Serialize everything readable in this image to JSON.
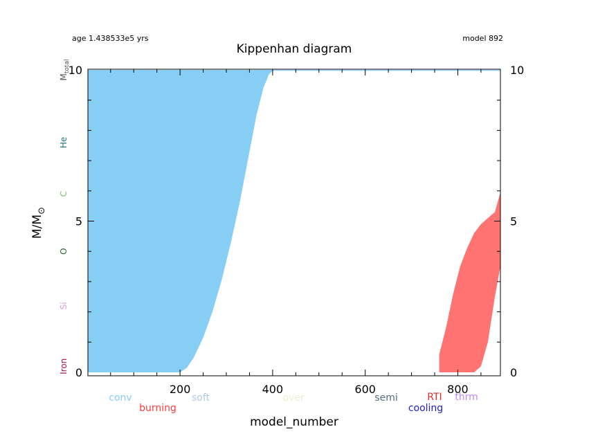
{
  "chart_data": {
    "type": "area",
    "title": "Kippenhan diagram",
    "header_left": "age 1.438533e5 yrs",
    "header_right": "model 892",
    "xlabel": "model_number",
    "ylabel_main": "M/M",
    "ylabel_sub": "⊙",
    "xlim": [
      1,
      892
    ],
    "ylim": [
      0,
      10
    ],
    "grid": false,
    "x_ticks": [
      200,
      400,
      600,
      800
    ],
    "y_ticks": [
      0,
      5,
      10
    ],
    "y_ticks_right": [
      0,
      5,
      10
    ],
    "series": [
      {
        "name": "conv",
        "color": "#87CEF5",
        "x": [
          1,
          200,
          215,
          230,
          250,
          270,
          290,
          310,
          330,
          350,
          365,
          380,
          392,
          400,
          892
        ],
        "lower": [
          0,
          0,
          0.15,
          0.5,
          1.15,
          2.0,
          3.05,
          4.3,
          5.7,
          7.3,
          8.5,
          9.4,
          9.85,
          9.97,
          9.97
        ],
        "upper": [
          10,
          10,
          10,
          10,
          10,
          10,
          10,
          10,
          10,
          10,
          10,
          10,
          10,
          10,
          10
        ]
      },
      {
        "name": "burning",
        "color": "#FF7373",
        "x": [
          760,
          775,
          790,
          805,
          820,
          835,
          850,
          865,
          880,
          892
        ],
        "lower": [
          0,
          0,
          0,
          0,
          0,
          0,
          0.2,
          1.0,
          2.5,
          3.5
        ],
        "upper": [
          0.6,
          1.5,
          2.6,
          3.5,
          4.1,
          4.6,
          4.9,
          5.1,
          5.3,
          5.95
        ]
      }
    ],
    "legend": [
      {
        "label": "conv",
        "color": "#87CEFA"
      },
      {
        "label": "burning",
        "color": "#FF3B3B"
      },
      {
        "label": "soft",
        "color": "#B0C8E8"
      },
      {
        "label": "over",
        "color": "#EDEDD2"
      },
      {
        "label": "semi",
        "color": "#556B7F"
      },
      {
        "label": "cooling",
        "color": "#1E1ECF"
      },
      {
        "label": "RTI",
        "color": "#E02A2A"
      },
      {
        "label": "thrm",
        "color": "#C28BE8"
      }
    ],
    "left_labels": [
      {
        "label": "M",
        "sub": "total",
        "value": 10,
        "color": "#555555"
      },
      {
        "label": "He",
        "value": 7.6,
        "color": "#1F7A7A"
      },
      {
        "label": "C",
        "value": 5.9,
        "color": "#7FBF6F"
      },
      {
        "label": "O",
        "value": 4.0,
        "color": "#1F6A2A"
      },
      {
        "label": "Si",
        "value": 2.2,
        "color": "#D8A0D8"
      },
      {
        "label": "Iron",
        "value": 0.2,
        "color": "#A0103A"
      }
    ],
    "legend_placement": "bottom"
  }
}
